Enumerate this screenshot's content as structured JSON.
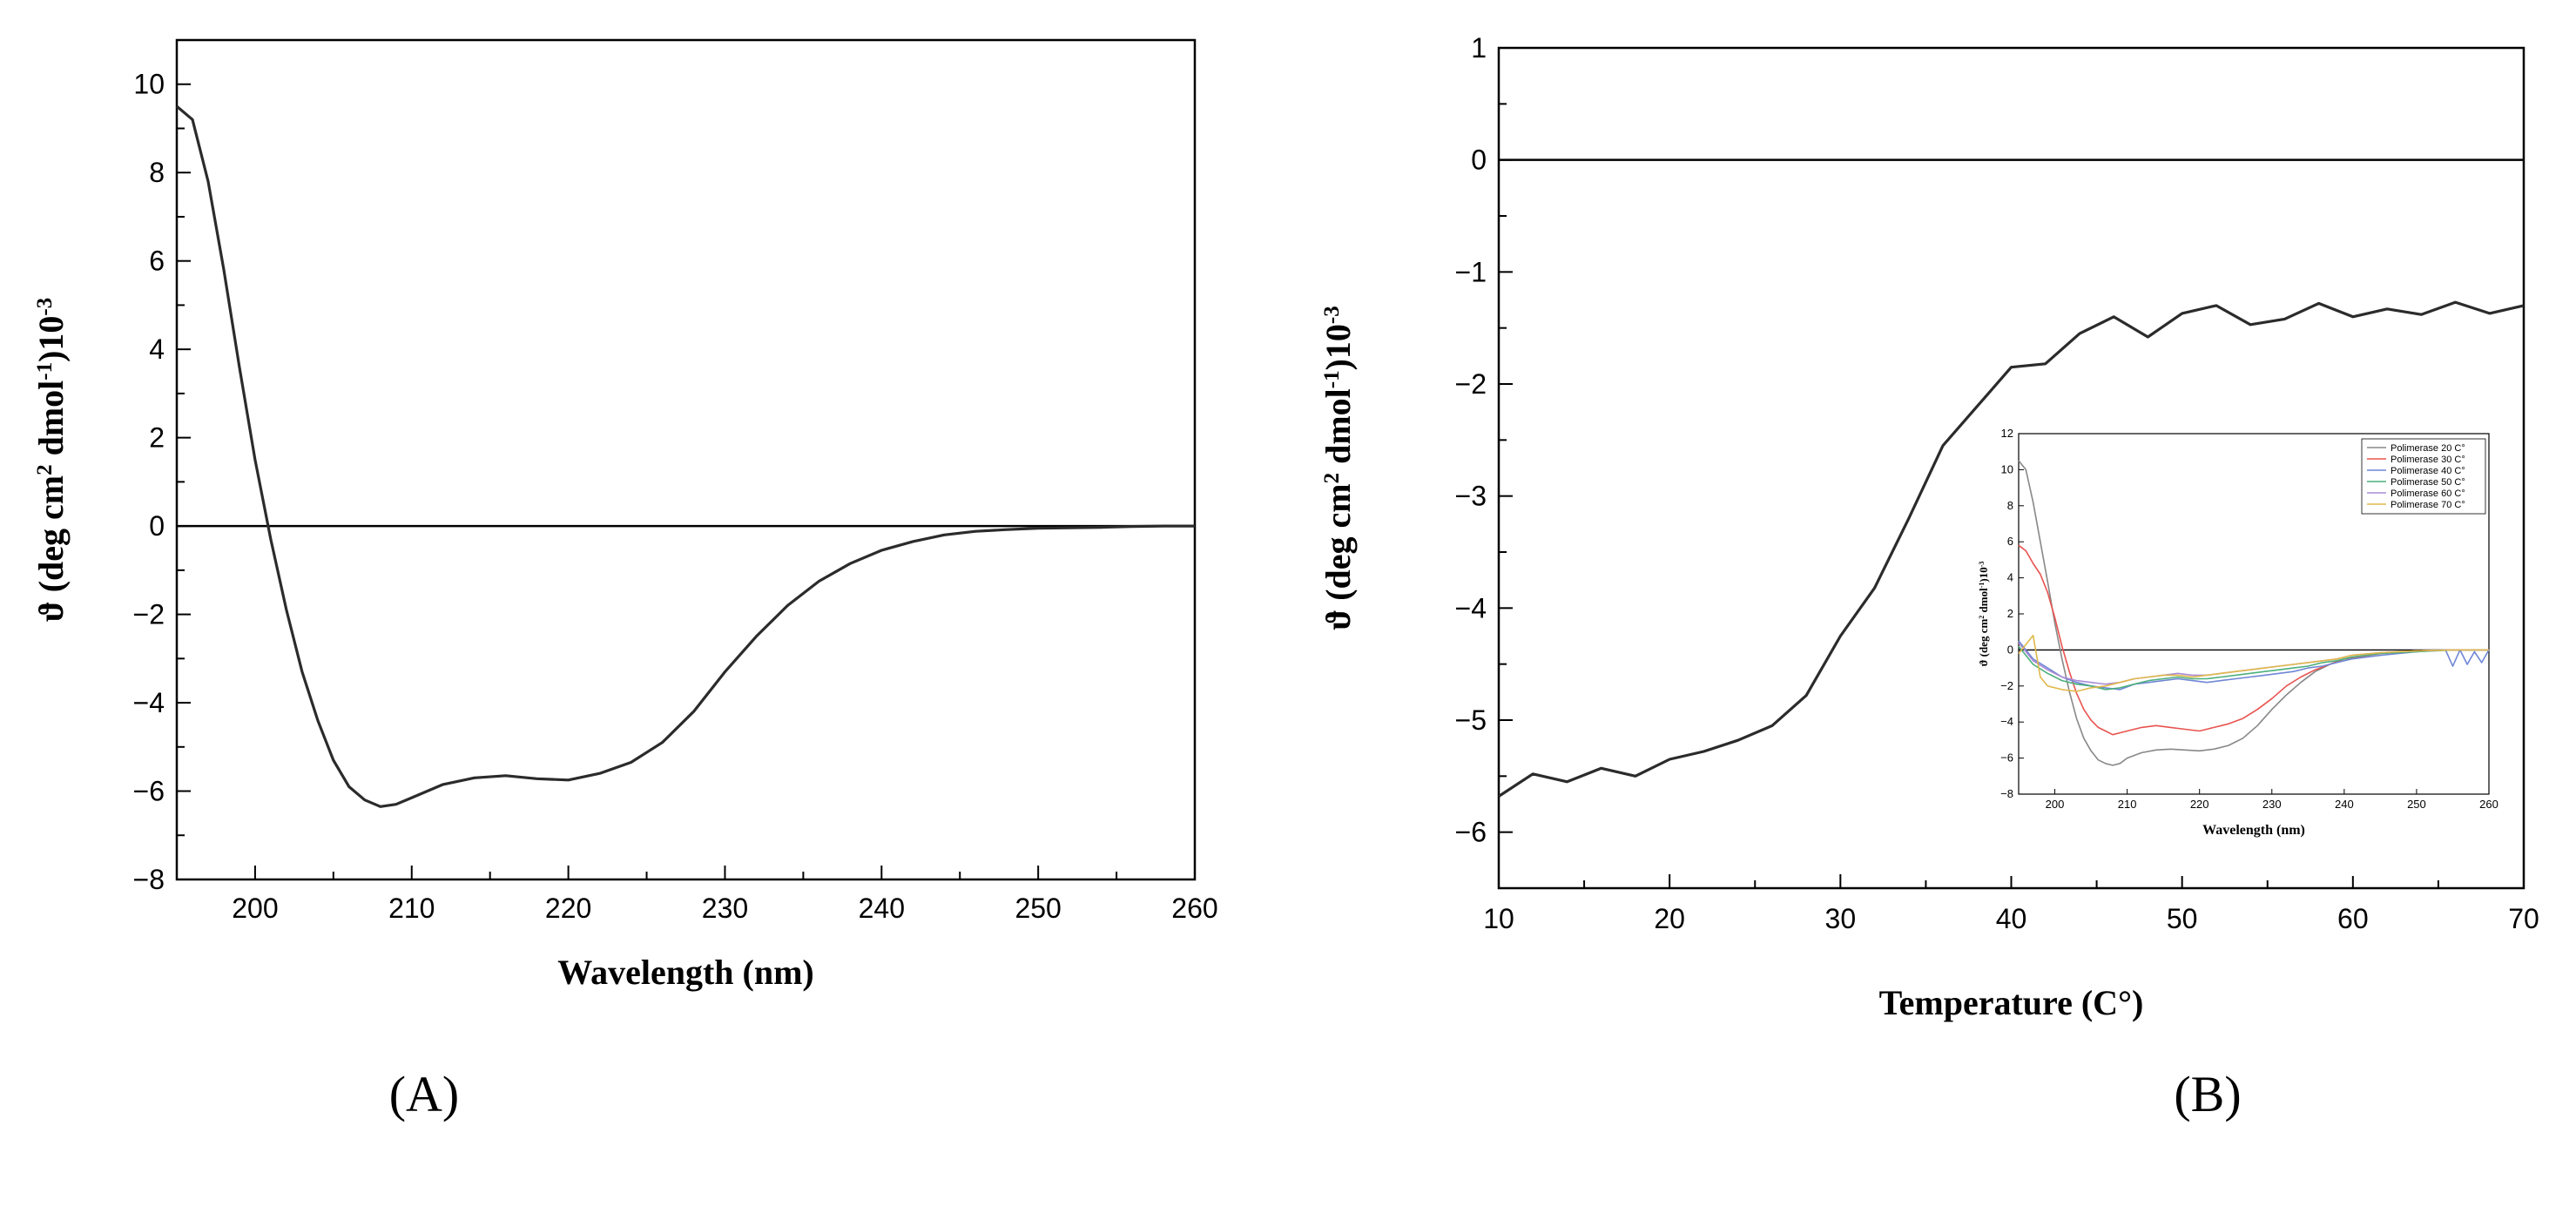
{
  "chart_data": [
    {
      "panel": "(A)",
      "panel_letter": "A",
      "type": "line",
      "xlabel": "Wavelength (nm)",
      "ylabel": "ϑ (deg cm² dmol⁻¹)10⁻³",
      "ylabel_parts": {
        "pre": "ϑ (deg cm",
        "sup1": "2",
        "mid": " dmol",
        "sup2": "-1",
        "post": ")10",
        "sup3": "-3"
      },
      "xlim": [
        195,
        260
      ],
      "ylim": [
        -8,
        11
      ],
      "xticks": [
        200,
        210,
        220,
        230,
        240,
        250,
        260
      ],
      "yticks": [
        -8,
        -6,
        -4,
        -2,
        0,
        2,
        4,
        6,
        8,
        10
      ],
      "zero_line": true,
      "grid": false,
      "series": [
        {
          "color": "#2b2b2b",
          "x": [
            195,
            196,
            197,
            198,
            199,
            200,
            201,
            202,
            203,
            204,
            205,
            206,
            207,
            208,
            209,
            210,
            212,
            214,
            216,
            218,
            220,
            222,
            224,
            226,
            228,
            230,
            232,
            234,
            236,
            238,
            240,
            242,
            244,
            246,
            248,
            250,
            252,
            254,
            256,
            258,
            260
          ],
          "y": [
            9.5,
            9.2,
            7.8,
            5.8,
            3.6,
            1.5,
            -0.3,
            -1.9,
            -3.3,
            -4.4,
            -5.3,
            -5.9,
            -6.2,
            -6.35,
            -6.3,
            -6.15,
            -5.85,
            -5.7,
            -5.65,
            -5.72,
            -5.75,
            -5.6,
            -5.35,
            -4.9,
            -4.2,
            -3.3,
            -2.5,
            -1.8,
            -1.25,
            -0.85,
            -0.55,
            -0.35,
            -0.2,
            -0.12,
            -0.08,
            -0.05,
            -0.04,
            -0.03,
            -0.01,
            0,
            0
          ]
        }
      ]
    },
    {
      "panel": "(B)",
      "panel_letter": "B",
      "type": "line",
      "xlabel": "Temperature (C°)",
      "ylabel": "ϑ (deg cm² dmol⁻¹)10⁻³",
      "ylabel_parts": {
        "pre": "ϑ (deg cm",
        "sup1": "2",
        "mid": " dmol",
        "sup2": "-1",
        "post": ")10",
        "sup3": "-3"
      },
      "xlim": [
        10,
        70
      ],
      "ylim": [
        -6.5,
        1
      ],
      "xticks": [
        10,
        20,
        30,
        40,
        50,
        60,
        70
      ],
      "yticks": [
        -6,
        -5,
        -4,
        -3,
        -2,
        -1,
        0,
        1
      ],
      "zero_line": true,
      "grid": false,
      "series": [
        {
          "color": "#2b2b2b",
          "x": [
            10,
            12,
            14,
            16,
            18,
            20,
            22,
            24,
            26,
            28,
            30,
            32,
            34,
            36,
            38,
            40,
            42,
            44,
            46,
            48,
            50,
            52,
            54,
            56,
            58,
            60,
            62,
            64,
            66,
            68,
            70
          ],
          "y": [
            -5.68,
            -5.48,
            -5.55,
            -5.43,
            -5.5,
            -5.35,
            -5.28,
            -5.18,
            -5.05,
            -4.78,
            -4.25,
            -3.82,
            -3.2,
            -2.55,
            -2.2,
            -1.85,
            -1.82,
            -1.55,
            -1.4,
            -1.58,
            -1.37,
            -1.3,
            -1.47,
            -1.42,
            -1.28,
            -1.4,
            -1.33,
            -1.38,
            -1.27,
            -1.37,
            -1.3
          ]
        }
      ],
      "inset": {
        "type": "line",
        "xlabel": "Wavelength (nm)",
        "ylabel": "ϑ (deg cm² dmol⁻¹)10⁻³",
        "ylabel_parts": {
          "pre": "ϑ (deg cm",
          "sup1": "2",
          "mid": " dmol",
          "sup2": "-1",
          "post": ")10",
          "sup3": "-3"
        },
        "xlim": [
          195,
          260
        ],
        "ylim": [
          -8,
          12
        ],
        "xticks": [
          200,
          210,
          220,
          230,
          240,
          250,
          260
        ],
        "yticks": [
          -8,
          -6,
          -4,
          -2,
          0,
          2,
          4,
          6,
          8,
          10,
          12
        ],
        "zero_line": true,
        "legend": "top-right",
        "series": [
          {
            "name": "Polimerase 20 C°",
            "color": "#888888",
            "x": [
              195,
              196,
              197,
              198,
              199,
              200,
              201,
              202,
              203,
              204,
              205,
              206,
              207,
              208,
              209,
              210,
              212,
              214,
              216,
              218,
              220,
              222,
              224,
              226,
              228,
              230,
              232,
              234,
              236,
              238,
              240,
              245,
              250,
              255,
              260
            ],
            "y": [
              10.5,
              10.0,
              8.2,
              6.0,
              3.8,
              1.5,
              -0.5,
              -2.3,
              -3.8,
              -4.9,
              -5.6,
              -6.1,
              -6.3,
              -6.4,
              -6.3,
              -6.0,
              -5.7,
              -5.55,
              -5.5,
              -5.55,
              -5.6,
              -5.5,
              -5.3,
              -4.9,
              -4.2,
              -3.3,
              -2.5,
              -1.8,
              -1.2,
              -0.8,
              -0.5,
              -0.2,
              -0.05,
              0,
              0
            ]
          },
          {
            "name": "Polimerase 30 C°",
            "color": "#e8534f",
            "x": [
              195,
              196,
              197,
              198,
              199,
              200,
              201,
              202,
              203,
              204,
              205,
              206,
              207,
              208,
              209,
              210,
              212,
              214,
              216,
              218,
              220,
              222,
              224,
              226,
              228,
              230,
              232,
              234,
              236,
              238,
              240,
              245,
              250,
              255,
              260
            ],
            "y": [
              5.8,
              5.5,
              4.8,
              4.2,
              3.2,
              1.8,
              0.2,
              -1.2,
              -2.4,
              -3.3,
              -3.9,
              -4.3,
              -4.5,
              -4.7,
              -4.6,
              -4.5,
              -4.3,
              -4.2,
              -4.3,
              -4.4,
              -4.5,
              -4.3,
              -4.1,
              -3.8,
              -3.3,
              -2.7,
              -2.0,
              -1.5,
              -1.1,
              -0.8,
              -0.5,
              -0.2,
              -0.05,
              0,
              0
            ]
          },
          {
            "name": "Polimerase 40 C°",
            "color": "#6f86d6",
            "x": [
              195,
              197,
              199,
              201,
              203,
              205,
              207,
              209,
              211,
              213,
              215,
              217,
              219,
              221,
              223,
              225,
              227,
              229,
              231,
              233,
              235,
              237,
              239,
              241,
              245,
              250,
              254,
              255,
              256,
              257,
              258,
              259,
              260
            ],
            "y": [
              0.5,
              -0.5,
              -1.0,
              -1.5,
              -1.8,
              -2.0,
              -2.1,
              -2.2,
              -1.9,
              -1.8,
              -1.7,
              -1.6,
              -1.7,
              -1.8,
              -1.7,
              -1.6,
              -1.5,
              -1.4,
              -1.3,
              -1.2,
              -1.0,
              -0.9,
              -0.7,
              -0.5,
              -0.3,
              -0.1,
              0,
              -0.9,
              0,
              -0.8,
              -0.1,
              -0.7,
              0
            ]
          },
          {
            "name": "Polimerase 50 C°",
            "color": "#4caf7d",
            "x": [
              195,
              197,
              199,
              201,
              203,
              205,
              207,
              209,
              211,
              213,
              215,
              217,
              219,
              221,
              223,
              225,
              227,
              229,
              231,
              233,
              235,
              237,
              239,
              241,
              245,
              250,
              255,
              260
            ],
            "y": [
              0.2,
              -0.8,
              -1.3,
              -1.7,
              -1.9,
              -2.0,
              -2.2,
              -2.1,
              -1.9,
              -1.7,
              -1.6,
              -1.5,
              -1.6,
              -1.6,
              -1.5,
              -1.4,
              -1.3,
              -1.2,
              -1.1,
              -1.0,
              -0.9,
              -0.7,
              -0.6,
              -0.4,
              -0.2,
              -0.1,
              0,
              0
            ]
          },
          {
            "name": "Polimerase 60 C°",
            "color": "#a98bd6",
            "x": [
              195,
              197,
              199,
              201,
              203,
              205,
              207,
              209,
              211,
              213,
              215,
              217,
              219,
              221,
              223,
              225,
              227,
              229,
              231,
              233,
              235,
              237,
              239,
              241,
              245,
              250,
              255,
              260
            ],
            "y": [
              0.4,
              -0.6,
              -1.1,
              -1.5,
              -1.7,
              -1.8,
              -1.9,
              -1.8,
              -1.6,
              -1.5,
              -1.4,
              -1.3,
              -1.4,
              -1.4,
              -1.3,
              -1.2,
              -1.1,
              -1.0,
              -0.9,
              -0.8,
              -0.7,
              -0.6,
              -0.5,
              -0.3,
              -0.15,
              -0.05,
              0,
              0
            ]
          },
          {
            "name": "Polimerase 70 C°",
            "color": "#e0b84a",
            "x": [
              195,
              197,
              198,
              199,
              201,
              203,
              205,
              207,
              209,
              211,
              213,
              215,
              217,
              219,
              221,
              223,
              225,
              227,
              229,
              231,
              233,
              235,
              237,
              239,
              241,
              245,
              250,
              255,
              260
            ],
            "y": [
              -0.2,
              0.8,
              -1.5,
              -2.0,
              -2.2,
              -2.3,
              -2.1,
              -2.0,
              -1.8,
              -1.6,
              -1.5,
              -1.4,
              -1.4,
              -1.5,
              -1.4,
              -1.3,
              -1.2,
              -1.1,
              -1.0,
              -0.9,
              -0.8,
              -0.7,
              -0.6,
              -0.5,
              -0.3,
              -0.15,
              -0.05,
              0,
              0
            ]
          }
        ]
      }
    }
  ]
}
